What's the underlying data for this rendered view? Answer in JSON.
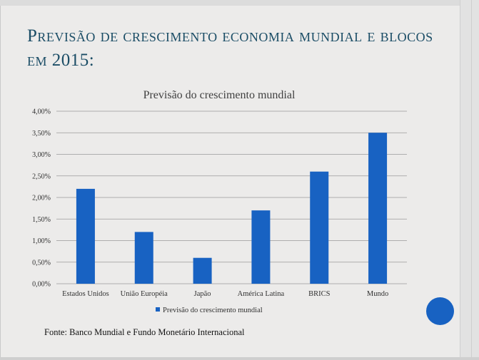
{
  "slide": {
    "title": "Previsão de crescimento economia mundial e blocos em 2015:",
    "source": "Fonte: Banco Mundial e Fundo Monetário Internacional"
  },
  "colors": {
    "title": "#1b4d66",
    "bar": "#1862c2",
    "nav_circle": "#1862c2",
    "gridline": "#9a9a9a"
  },
  "chart_data": {
    "type": "bar",
    "title": "Previsão do crescimento mundial",
    "xlabel": "",
    "ylabel": "",
    "categories": [
      "Estados Unidos",
      "União Européia",
      "Japão",
      "América Latina",
      "BRICS",
      "Mundo"
    ],
    "series": [
      {
        "name": "Previsão do crescimento mundial",
        "values": [
          2.2,
          1.2,
          0.6,
          1.7,
          2.6,
          3.5
        ]
      }
    ],
    "ylim": [
      0,
      4.0
    ],
    "yticks": [
      0,
      0.5,
      1.0,
      1.5,
      2.0,
      2.5,
      3.0,
      3.5,
      4.0
    ],
    "ytick_labels": [
      "0,00%",
      "0,50%",
      "1,00%",
      "1,50%",
      "2,00%",
      "2,50%",
      "3,00%",
      "3,50%",
      "4,00%"
    ],
    "grid": true,
    "legend_position": "bottom"
  }
}
